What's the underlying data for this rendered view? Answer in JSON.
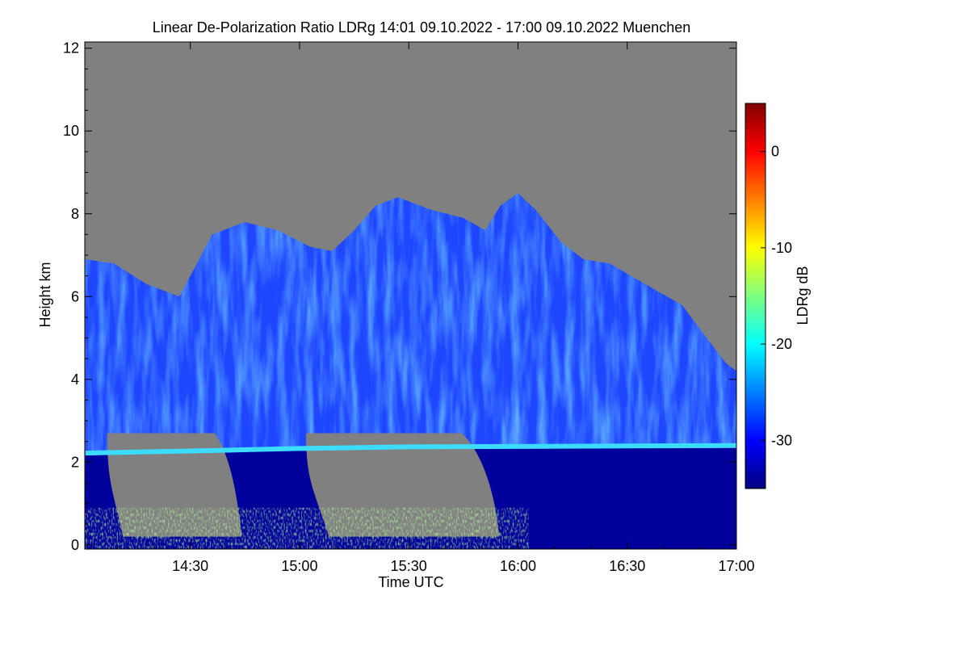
{
  "chart_data": {
    "type": "heatmap",
    "title": "Linear De-Polarization Ratio LDRg   14:01 09.10.2022 - 17:00 09.10.2022 Muenchen",
    "xlabel": "Time UTC",
    "ylabel": "Height km",
    "colorbar_label": "LDRg dB",
    "x_range_hours": [
      14.017,
      17.0
    ],
    "y_range_km": [
      -0.1,
      12.15
    ],
    "x_ticks": [
      {
        "value": 14.5,
        "label": "14:30"
      },
      {
        "value": 15.0,
        "label": "15:00"
      },
      {
        "value": 15.5,
        "label": "15:30"
      },
      {
        "value": 16.0,
        "label": "16:00"
      },
      {
        "value": 16.5,
        "label": "16:30"
      },
      {
        "value": 17.0,
        "label": "17:00"
      }
    ],
    "y_ticks": [
      {
        "value": 0,
        "label": "0"
      },
      {
        "value": 2,
        "label": "2"
      },
      {
        "value": 4,
        "label": "4"
      },
      {
        "value": 6,
        "label": "6"
      },
      {
        "value": 8,
        "label": "8"
      },
      {
        "value": 10,
        "label": "10"
      },
      {
        "value": 12,
        "label": "12"
      }
    ],
    "colorbar_range_db": [
      -35,
      5
    ],
    "colorbar_ticks": [
      {
        "value": 0,
        "label": "0"
      },
      {
        "value": -10,
        "label": "-10"
      },
      {
        "value": -20,
        "label": "-20"
      },
      {
        "value": -30,
        "label": "-30"
      }
    ],
    "colors": {
      "no_signal": "#808080",
      "cloud": "#1e46ff",
      "below_cloud": "#00009a",
      "melting_layer": "#3cdcff"
    },
    "colormap": [
      "#00007f",
      "#0000ff",
      "#007fff",
      "#00ffff",
      "#7fff7f",
      "#ffff00",
      "#ff7f00",
      "#ff0000",
      "#7f0000"
    ],
    "cloud_top_km": [
      [
        14.02,
        6.9
      ],
      [
        14.15,
        6.8
      ],
      [
        14.3,
        6.3
      ],
      [
        14.45,
        6.0
      ],
      [
        14.52,
        6.7
      ],
      [
        14.6,
        7.5
      ],
      [
        14.75,
        7.8
      ],
      [
        14.9,
        7.6
      ],
      [
        15.05,
        7.2
      ],
      [
        15.15,
        7.1
      ],
      [
        15.25,
        7.6
      ],
      [
        15.35,
        8.2
      ],
      [
        15.45,
        8.4
      ],
      [
        15.6,
        8.1
      ],
      [
        15.75,
        7.9
      ],
      [
        15.85,
        7.6
      ],
      [
        15.92,
        8.2
      ],
      [
        16.0,
        8.5
      ],
      [
        16.08,
        8.1
      ],
      [
        16.2,
        7.3
      ],
      [
        16.3,
        6.9
      ],
      [
        16.42,
        6.8
      ],
      [
        16.55,
        6.4
      ],
      [
        16.65,
        6.1
      ],
      [
        16.75,
        5.8
      ],
      [
        16.85,
        5.1
      ],
      [
        16.95,
        4.4
      ],
      [
        17.0,
        4.2
      ]
    ],
    "melting_layer_km": [
      [
        14.02,
        2.22
      ],
      [
        14.5,
        2.27
      ],
      [
        15.0,
        2.33
      ],
      [
        15.5,
        2.37
      ],
      [
        16.0,
        2.38
      ],
      [
        16.5,
        2.39
      ],
      [
        17.0,
        2.4
      ]
    ],
    "precip_gaps": [
      {
        "x0": 14.12,
        "x1": 14.72,
        "top_km": 2.7
      },
      {
        "x0": 15.03,
        "x1": 15.9,
        "top_km": 2.7
      }
    ]
  }
}
